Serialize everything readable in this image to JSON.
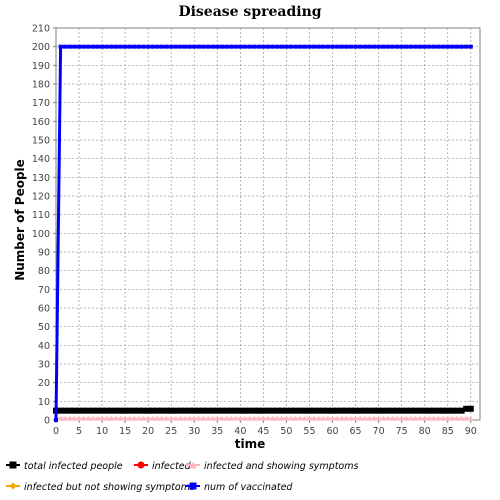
{
  "chart_data": {
    "type": "line",
    "title": "Disease spreading",
    "xlabel": "time",
    "ylabel": "Number of People",
    "xlim": [
      0,
      92
    ],
    "ylim": [
      0,
      210
    ],
    "xticks": [
      0,
      5,
      10,
      15,
      20,
      25,
      30,
      35,
      40,
      45,
      50,
      55,
      60,
      65,
      70,
      75,
      80,
      85,
      90
    ],
    "yticks": [
      0,
      10,
      20,
      30,
      40,
      50,
      60,
      70,
      80,
      90,
      100,
      110,
      120,
      130,
      140,
      150,
      160,
      170,
      180,
      190,
      200,
      210
    ],
    "grid": true,
    "legend_position": "bottom",
    "series": [
      {
        "name": "total infected people",
        "color": "#000000",
        "marker": "square",
        "points": [
          [
            0,
            5
          ],
          [
            1,
            5
          ],
          [
            2,
            5
          ],
          [
            3,
            5
          ],
          [
            4,
            5
          ],
          [
            5,
            5
          ],
          [
            6,
            5
          ],
          [
            7,
            5
          ],
          [
            8,
            5
          ],
          [
            9,
            5
          ],
          [
            10,
            5
          ],
          [
            11,
            5
          ],
          [
            12,
            5
          ],
          [
            13,
            5
          ],
          [
            14,
            5
          ],
          [
            15,
            5
          ],
          [
            16,
            5
          ],
          [
            17,
            5
          ],
          [
            18,
            5
          ],
          [
            19,
            5
          ],
          [
            20,
            5
          ],
          [
            21,
            5
          ],
          [
            22,
            5
          ],
          [
            23,
            5
          ],
          [
            24,
            5
          ],
          [
            25,
            5
          ],
          [
            26,
            5
          ],
          [
            27,
            5
          ],
          [
            28,
            5
          ],
          [
            29,
            5
          ],
          [
            30,
            5
          ],
          [
            31,
            5
          ],
          [
            32,
            5
          ],
          [
            33,
            5
          ],
          [
            34,
            5
          ],
          [
            35,
            5
          ],
          [
            36,
            5
          ],
          [
            37,
            5
          ],
          [
            38,
            5
          ],
          [
            39,
            5
          ],
          [
            40,
            5
          ],
          [
            41,
            5
          ],
          [
            42,
            5
          ],
          [
            43,
            5
          ],
          [
            44,
            5
          ],
          [
            45,
            5
          ],
          [
            46,
            5
          ],
          [
            47,
            5
          ],
          [
            48,
            5
          ],
          [
            49,
            5
          ],
          [
            50,
            5
          ],
          [
            51,
            5
          ],
          [
            52,
            5
          ],
          [
            53,
            5
          ],
          [
            54,
            5
          ],
          [
            55,
            5
          ],
          [
            56,
            5
          ],
          [
            57,
            5
          ],
          [
            58,
            5
          ],
          [
            59,
            5
          ],
          [
            60,
            5
          ],
          [
            61,
            5
          ],
          [
            62,
            5
          ],
          [
            63,
            5
          ],
          [
            64,
            5
          ],
          [
            65,
            5
          ],
          [
            66,
            5
          ],
          [
            67,
            5
          ],
          [
            68,
            5
          ],
          [
            69,
            5
          ],
          [
            70,
            5
          ],
          [
            71,
            5
          ],
          [
            72,
            5
          ],
          [
            73,
            5
          ],
          [
            74,
            5
          ],
          [
            75,
            5
          ],
          [
            76,
            5
          ],
          [
            77,
            5
          ],
          [
            78,
            5
          ],
          [
            79,
            5
          ],
          [
            80,
            5
          ],
          [
            81,
            5
          ],
          [
            82,
            5
          ],
          [
            83,
            5
          ],
          [
            84,
            5
          ],
          [
            85,
            5
          ],
          [
            86,
            5
          ],
          [
            87,
            5
          ],
          [
            88,
            5
          ],
          [
            89,
            6
          ],
          [
            90,
            6
          ]
        ]
      },
      {
        "name": "infected",
        "color": "#ff0000",
        "marker": "circle",
        "points": []
      },
      {
        "name": "infected and showing symptoms",
        "color": "#ffb6c1",
        "marker": "triangle",
        "points": [
          [
            0,
            1
          ],
          [
            1,
            1
          ],
          [
            2,
            1
          ],
          [
            3,
            1
          ],
          [
            4,
            1
          ],
          [
            5,
            1
          ],
          [
            6,
            1
          ],
          [
            7,
            1
          ],
          [
            8,
            1
          ],
          [
            9,
            1
          ],
          [
            10,
            1
          ],
          [
            11,
            1
          ],
          [
            12,
            1
          ],
          [
            13,
            1
          ],
          [
            14,
            1
          ],
          [
            15,
            1
          ],
          [
            16,
            1
          ],
          [
            17,
            1
          ],
          [
            18,
            1
          ],
          [
            19,
            1
          ],
          [
            20,
            1
          ],
          [
            21,
            1
          ],
          [
            22,
            1
          ],
          [
            23,
            1
          ],
          [
            24,
            1
          ],
          [
            25,
            1
          ],
          [
            26,
            1
          ],
          [
            27,
            1
          ],
          [
            28,
            1
          ],
          [
            29,
            1
          ],
          [
            30,
            1
          ],
          [
            31,
            1
          ],
          [
            32,
            1
          ],
          [
            33,
            1
          ],
          [
            34,
            1
          ],
          [
            35,
            1
          ],
          [
            36,
            1
          ],
          [
            37,
            1
          ],
          [
            38,
            1
          ],
          [
            39,
            1
          ],
          [
            40,
            1
          ],
          [
            41,
            1
          ],
          [
            42,
            1
          ],
          [
            43,
            1
          ],
          [
            44,
            1
          ],
          [
            45,
            1
          ],
          [
            46,
            1
          ],
          [
            47,
            1
          ],
          [
            48,
            1
          ],
          [
            49,
            1
          ],
          [
            50,
            1
          ],
          [
            51,
            1
          ],
          [
            52,
            1
          ],
          [
            53,
            1
          ],
          [
            54,
            1
          ],
          [
            55,
            1
          ],
          [
            56,
            1
          ],
          [
            57,
            1
          ],
          [
            58,
            1
          ],
          [
            59,
            1
          ],
          [
            60,
            1
          ],
          [
            61,
            1
          ],
          [
            62,
            1
          ],
          [
            63,
            1
          ],
          [
            64,
            1
          ],
          [
            65,
            1
          ],
          [
            66,
            1
          ],
          [
            67,
            1
          ],
          [
            68,
            1
          ],
          [
            69,
            1
          ],
          [
            70,
            1
          ],
          [
            71,
            1
          ],
          [
            72,
            1
          ],
          [
            73,
            1
          ],
          [
            74,
            1
          ],
          [
            75,
            1
          ],
          [
            76,
            1
          ],
          [
            77,
            1
          ],
          [
            78,
            1
          ],
          [
            79,
            1
          ],
          [
            80,
            1
          ],
          [
            81,
            1
          ],
          [
            82,
            1
          ],
          [
            83,
            1
          ],
          [
            84,
            1
          ],
          [
            85,
            1
          ],
          [
            86,
            1
          ],
          [
            87,
            1
          ],
          [
            88,
            1
          ],
          [
            89,
            1
          ],
          [
            90,
            1
          ]
        ]
      },
      {
        "name": "infected but not showing symptoms",
        "color": "#ffa500",
        "marker": "diamond",
        "points": []
      },
      {
        "name": "num of vaccinated",
        "color": "#0000ff",
        "marker": "square",
        "points": [
          [
            0,
            0
          ],
          [
            1,
            200
          ],
          [
            2,
            200
          ],
          [
            3,
            200
          ],
          [
            4,
            200
          ],
          [
            5,
            200
          ],
          [
            6,
            200
          ],
          [
            7,
            200
          ],
          [
            8,
            200
          ],
          [
            9,
            200
          ],
          [
            10,
            200
          ],
          [
            11,
            200
          ],
          [
            12,
            200
          ],
          [
            13,
            200
          ],
          [
            14,
            200
          ],
          [
            15,
            200
          ],
          [
            16,
            200
          ],
          [
            17,
            200
          ],
          [
            18,
            200
          ],
          [
            19,
            200
          ],
          [
            20,
            200
          ],
          [
            21,
            200
          ],
          [
            22,
            200
          ],
          [
            23,
            200
          ],
          [
            24,
            200
          ],
          [
            25,
            200
          ],
          [
            26,
            200
          ],
          [
            27,
            200
          ],
          [
            28,
            200
          ],
          [
            29,
            200
          ],
          [
            30,
            200
          ],
          [
            31,
            200
          ],
          [
            32,
            200
          ],
          [
            33,
            200
          ],
          [
            34,
            200
          ],
          [
            35,
            200
          ],
          [
            36,
            200
          ],
          [
            37,
            200
          ],
          [
            38,
            200
          ],
          [
            39,
            200
          ],
          [
            40,
            200
          ],
          [
            41,
            200
          ],
          [
            42,
            200
          ],
          [
            43,
            200
          ],
          [
            44,
            200
          ],
          [
            45,
            200
          ],
          [
            46,
            200
          ],
          [
            47,
            200
          ],
          [
            48,
            200
          ],
          [
            49,
            200
          ],
          [
            50,
            200
          ],
          [
            51,
            200
          ],
          [
            52,
            200
          ],
          [
            53,
            200
          ],
          [
            54,
            200
          ],
          [
            55,
            200
          ],
          [
            56,
            200
          ],
          [
            57,
            200
          ],
          [
            58,
            200
          ],
          [
            59,
            200
          ],
          [
            60,
            200
          ],
          [
            61,
            200
          ],
          [
            62,
            200
          ],
          [
            63,
            200
          ],
          [
            64,
            200
          ],
          [
            65,
            200
          ],
          [
            66,
            200
          ],
          [
            67,
            200
          ],
          [
            68,
            200
          ],
          [
            69,
            200
          ],
          [
            70,
            200
          ],
          [
            71,
            200
          ],
          [
            72,
            200
          ],
          [
            73,
            200
          ],
          [
            74,
            200
          ],
          [
            75,
            200
          ],
          [
            76,
            200
          ],
          [
            77,
            200
          ],
          [
            78,
            200
          ],
          [
            79,
            200
          ],
          [
            80,
            200
          ],
          [
            81,
            200
          ],
          [
            82,
            200
          ],
          [
            83,
            200
          ],
          [
            84,
            200
          ],
          [
            85,
            200
          ],
          [
            86,
            200
          ],
          [
            87,
            200
          ],
          [
            88,
            200
          ],
          [
            89,
            200
          ],
          [
            90,
            200
          ]
        ]
      }
    ]
  }
}
